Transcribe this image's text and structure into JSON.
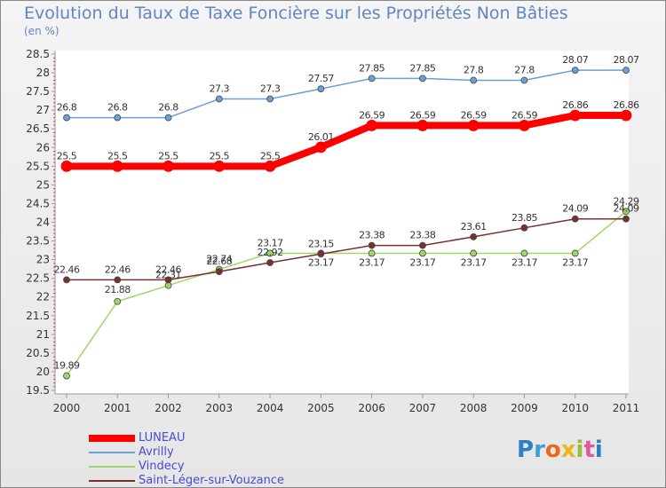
{
  "title": "Evolution du Taux de Taxe Foncière sur les Propriétés Non Bâties",
  "subtitle": "(en %)",
  "logo": {
    "text": "Proxiti",
    "colors": [
      "#2e7fc1",
      "#3aa0d8",
      "#e86a1a",
      "#e8b81a",
      "#8fc13a",
      "#e05aa0",
      "#2e7fc1"
    ]
  },
  "chart_data": {
    "type": "line",
    "x": [
      "2000",
      "2001",
      "2002",
      "2003",
      "2004",
      "2005",
      "2006",
      "2007",
      "2008",
      "2009",
      "2010",
      "2011"
    ],
    "ylim": [
      19.5,
      28.5
    ],
    "yticks": [
      "19.5",
      "20",
      "20.5",
      "21",
      "21.5",
      "22",
      "22.5",
      "23",
      "23.5",
      "24",
      "24.5",
      "25",
      "25.5",
      "26",
      "26.5",
      "27",
      "27.5",
      "28",
      "28.5"
    ],
    "grid": false,
    "legend": "bottom-left",
    "series": [
      {
        "name": "LUNEAU",
        "color": "#ff0000",
        "width": 8,
        "values": [
          25.5,
          25.5,
          25.5,
          25.5,
          25.5,
          26.01,
          26.59,
          26.59,
          26.59,
          26.59,
          26.86,
          26.86
        ],
        "labels": [
          "25.5",
          "25.5",
          "25.5",
          "25.5",
          "25.5",
          "26.01",
          "26.59",
          "26.59",
          "26.59",
          "26.59",
          "26.86",
          "26.86"
        ]
      },
      {
        "name": "Avrilly",
        "color": "#6aa0d8",
        "width": 1.5,
        "values": [
          26.8,
          26.8,
          26.8,
          27.3,
          27.3,
          27.57,
          27.85,
          27.85,
          27.8,
          27.8,
          28.07,
          28.07
        ],
        "labels": [
          "26.8",
          "26.8",
          "26.8",
          "27.3",
          "27.3",
          "27.57",
          "27.85",
          "27.85",
          "27.8",
          "27.8",
          "28.07",
          "28.07"
        ]
      },
      {
        "name": "Vindecy",
        "color": "#9ed66a",
        "width": 1.5,
        "values": [
          19.89,
          21.88,
          22.31,
          22.74,
          23.17,
          23.17,
          23.17,
          23.17,
          23.17,
          23.17,
          23.17,
          24.29
        ],
        "labels": [
          "19.89",
          "21.88",
          "22.31",
          "22.74",
          "23.17",
          "23.17",
          "23.17",
          "23.17",
          "23.17",
          "23.17",
          "23.17",
          "24.29"
        ]
      },
      {
        "name": "Saint-Léger-sur-Vouzance",
        "color": "#7a3030",
        "width": 1.5,
        "values": [
          22.46,
          22.46,
          22.46,
          22.68,
          22.92,
          23.15,
          23.38,
          23.38,
          23.61,
          23.85,
          24.09,
          24.09
        ],
        "labels": [
          "22.46",
          "22.46",
          "22.46",
          "22.68",
          "22.92",
          "23.15",
          "23.38",
          "23.38",
          "23.61",
          "23.85",
          "24.09",
          "24.09"
        ]
      }
    ]
  }
}
